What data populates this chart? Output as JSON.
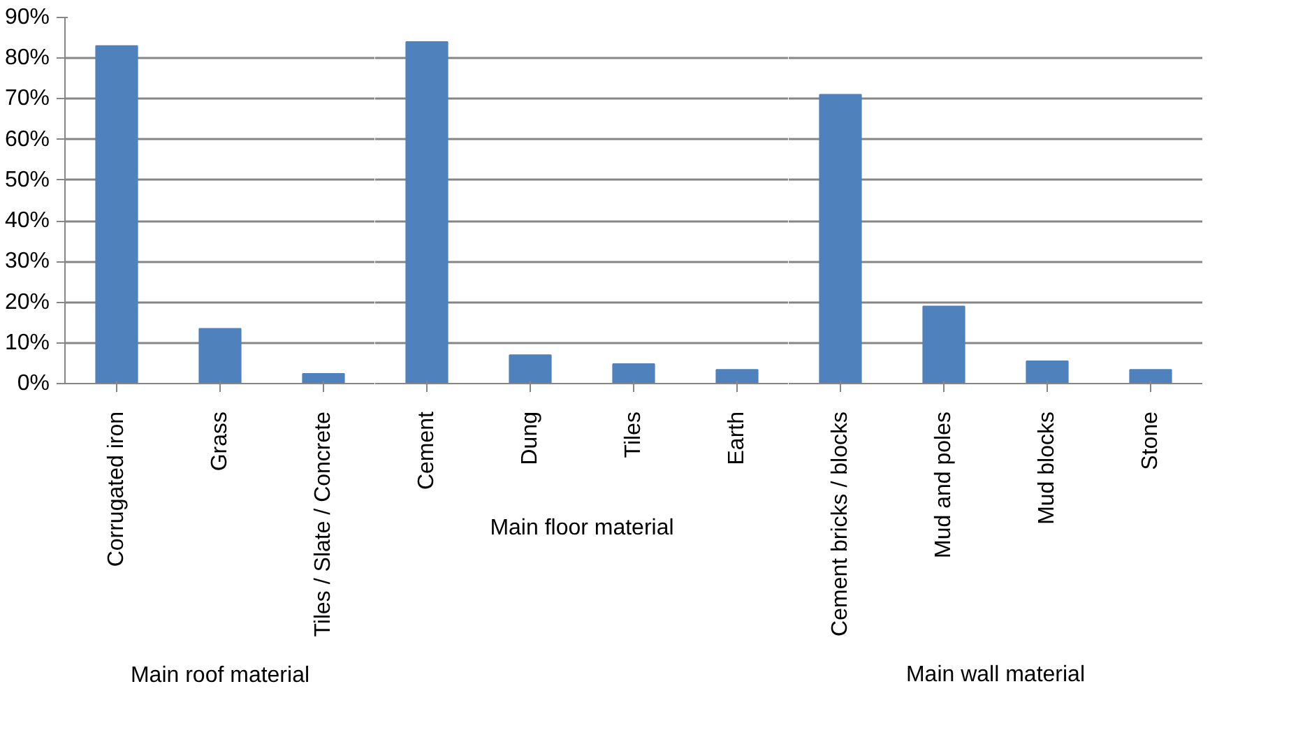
{
  "chart_data": [
    {
      "type": "bar",
      "xlabel": "Main roof material",
      "categories": [
        "Corrugated iron",
        "Grass",
        "Tiles / Slate / Concrete"
      ],
      "values": [
        83,
        13.5,
        2.4
      ],
      "color": "#4f81bd",
      "ylim": [
        0,
        90
      ],
      "yticks": [
        {
          "value": 0,
          "label": "0%"
        },
        {
          "value": 10,
          "label": "10%"
        },
        {
          "value": 20,
          "label": "20%"
        },
        {
          "value": 30,
          "label": "30%"
        },
        {
          "value": 40,
          "label": "40%"
        },
        {
          "value": 50,
          "label": "50%"
        },
        {
          "value": 60,
          "label": "60%"
        },
        {
          "value": 70,
          "label": "70%"
        },
        {
          "value": 80,
          "label": "80%"
        },
        {
          "value": 90,
          "label": "90%"
        }
      ],
      "grid": "y"
    },
    {
      "type": "bar",
      "xlabel": "Main floor material",
      "categories": [
        "Cement",
        "Dung",
        "Tiles",
        "Earth"
      ],
      "values": [
        84,
        7,
        4.8,
        3.4
      ],
      "color": "#4f81bd",
      "ylim": [
        0,
        90
      ],
      "yticks": [
        0,
        10,
        20,
        30,
        40,
        50,
        60,
        70,
        80,
        90
      ],
      "tick_labels": "x",
      "grid": "y"
    },
    {
      "type": "bar",
      "xlabel": "Main wall material",
      "categories": [
        "Cement bricks / blocks",
        "Mud and poles",
        "Mud blocks",
        "Stone"
      ],
      "values": [
        71,
        19,
        5.5,
        3.4
      ],
      "color": "#4f81bd",
      "ylim": [
        0,
        90
      ],
      "yticks": [
        0,
        10,
        20,
        30,
        40,
        50,
        60,
        70,
        80,
        90
      ],
      "tick_labels": "x",
      "grid": "y"
    }
  ]
}
